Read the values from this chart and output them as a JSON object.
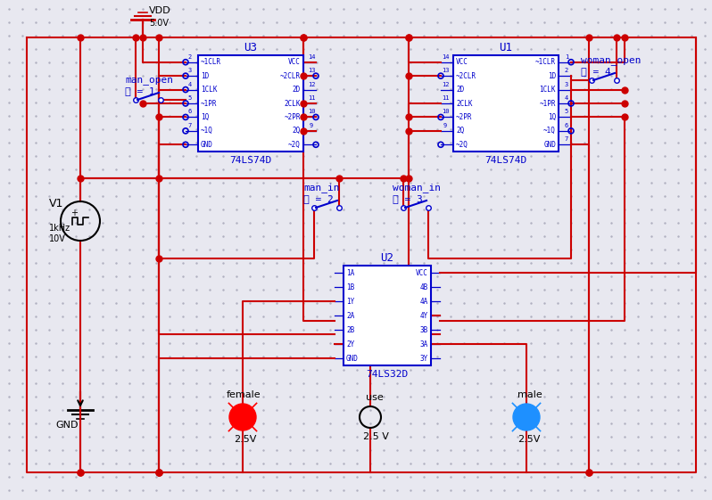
{
  "bg_color": "#e8e8f0",
  "dot_color": "#b0b0c0",
  "wire_color": "#cc0000",
  "comp_color": "#0000cc",
  "text_color_blue": "#0000cc",
  "text_color_black": "#000000",
  "figsize": [
    7.98,
    5.61
  ],
  "dpi": 100,
  "vdd_label": "VDD",
  "vdd_val": "5.0V",
  "v1_label": "V1",
  "gnd_label": "GND",
  "u3_label": "U3",
  "u3_sub": "74LS74D",
  "u1_label": "U1",
  "u1_sub": "74LS74D",
  "u2_label": "U2",
  "u2_sub": "74LS32D",
  "man_open": "man_open",
  "man_key": "键 = 1",
  "woman_open": "woman_open",
  "woman_key": "键 = 4",
  "man_in": "man_in",
  "man_in_key": "键 = 2",
  "woman_in": "woman_in",
  "woman_in_key": "键 = 3",
  "female_label": "female",
  "female_val": "2.5V",
  "use_label": "use",
  "use_val": "2.5 V",
  "male_label": "male",
  "male_val": "2.5V",
  "v1_freq": "1kHz",
  "v1_volt": "10V",
  "u3_left_pins": [
    "~1CLR",
    "1D",
    "1CLK",
    "~1PR",
    "1Q",
    "~1Q",
    "GND"
  ],
  "u3_lnums": [
    "2",
    "3",
    "4",
    "5",
    "6",
    "7",
    ""
  ],
  "u3_right_pins": [
    "VCC",
    "~2CLR",
    "2D",
    "2CLK",
    "~2PR",
    "2Q",
    "~2Q"
  ],
  "u3_rnums": [
    "14",
    "13",
    "12",
    "11",
    "10",
    "9",
    ""
  ],
  "u1_left_pins": [
    "VCC",
    "~2CLR",
    "2D",
    "2CLK",
    "~2PR",
    "2Q",
    "~2Q"
  ],
  "u1_lnums": [
    "14",
    "13",
    "12",
    "11",
    "10",
    "9",
    ""
  ],
  "u1_right_pins": [
    "~1CLR",
    "1D",
    "1CLK",
    "~1PR",
    "1Q",
    "~1Q",
    "GND"
  ],
  "u1_rnums": [
    "1",
    "2",
    "3",
    "4",
    "5",
    "6",
    "7"
  ],
  "u2_left_pins": [
    "1A",
    "1B",
    "1Y",
    "2A",
    "2B",
    "2Y",
    "GND"
  ],
  "u2_right_pins": [
    "VCC",
    "4B",
    "4A",
    "4Y",
    "3B",
    "3A",
    "3Y"
  ]
}
